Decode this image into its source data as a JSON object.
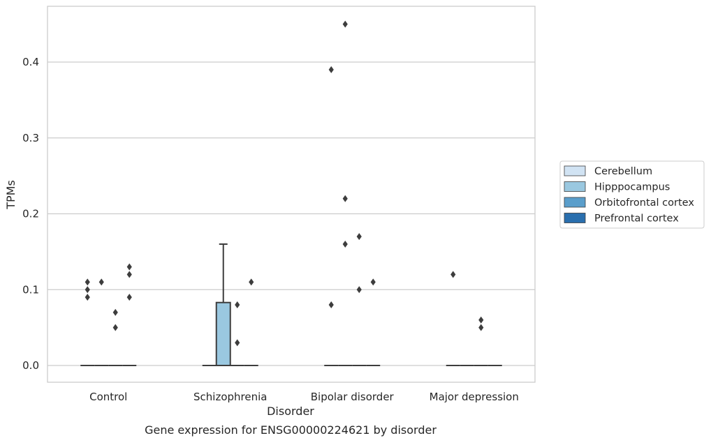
{
  "chart_data": {
    "type": "box",
    "xlabel": "Disorder",
    "ylabel": "TPMs",
    "caption": "Gene expression for ENSG00000224621 by disorder",
    "categories": [
      "Control",
      "Schizophrenia",
      "Bipolar disorder",
      "Major depression"
    ],
    "ylim": [
      -0.022,
      0.475
    ],
    "yticks": [
      "0.0",
      "0.1",
      "0.2",
      "0.3",
      "0.4"
    ],
    "yticks_values": [
      0.0,
      0.1,
      0.2,
      0.3,
      0.4
    ],
    "grid": "horizontal",
    "legend": {
      "placement": "right",
      "entries": [
        {
          "name": "Cerebellum",
          "color": "#d1e3f3"
        },
        {
          "name": "Hipppocampus",
          "color": "#9ac8e0"
        },
        {
          "name": "Orbitofrontal cortex",
          "color": "#5a9ecb"
        },
        {
          "name": "Prefrontal cortex",
          "color": "#2a6fae"
        }
      ]
    },
    "boxes": [
      {
        "category": "Control",
        "series": "Cerebellum",
        "q1": 0,
        "median": 0,
        "q3": 0,
        "whisker_low": 0,
        "whisker_high": 0,
        "outliers": [
          0.11,
          0.1,
          0.09
        ]
      },
      {
        "category": "Control",
        "series": "Hipppocampus",
        "q1": 0,
        "median": 0,
        "q3": 0,
        "whisker_low": 0,
        "whisker_high": 0,
        "outliers": [
          0.11
        ]
      },
      {
        "category": "Control",
        "series": "Orbitofrontal cortex",
        "q1": 0,
        "median": 0,
        "q3": 0,
        "whisker_low": 0,
        "whisker_high": 0,
        "outliers": [
          0.07,
          0.05
        ]
      },
      {
        "category": "Control",
        "series": "Prefrontal cortex",
        "q1": 0,
        "median": 0,
        "q3": 0,
        "whisker_low": 0,
        "whisker_high": 0,
        "outliers": [
          0.13,
          0.12,
          0.09
        ]
      },
      {
        "category": "Schizophrenia",
        "series": "Cerebellum",
        "q1": 0,
        "median": 0,
        "q3": 0,
        "whisker_low": 0,
        "whisker_high": 0,
        "outliers": []
      },
      {
        "category": "Schizophrenia",
        "series": "Hipppocampus",
        "q1": 0,
        "median": 0,
        "q3": 0.083,
        "whisker_low": 0,
        "whisker_high": 0.16,
        "outliers": []
      },
      {
        "category": "Schizophrenia",
        "series": "Orbitofrontal cortex",
        "q1": 0,
        "median": 0,
        "q3": 0,
        "whisker_low": 0,
        "whisker_high": 0,
        "outliers": [
          0.08,
          0.03
        ]
      },
      {
        "category": "Schizophrenia",
        "series": "Prefrontal cortex",
        "q1": 0,
        "median": 0,
        "q3": 0,
        "whisker_low": 0,
        "whisker_high": 0,
        "outliers": [
          0.11
        ]
      },
      {
        "category": "Bipolar disorder",
        "series": "Cerebellum",
        "q1": 0,
        "median": 0,
        "q3": 0,
        "whisker_low": 0,
        "whisker_high": 0,
        "outliers": [
          0.39,
          0.08
        ]
      },
      {
        "category": "Bipolar disorder",
        "series": "Hipppocampus",
        "q1": 0,
        "median": 0,
        "q3": 0,
        "whisker_low": 0,
        "whisker_high": 0,
        "outliers": [
          0.45,
          0.22,
          0.16
        ]
      },
      {
        "category": "Bipolar disorder",
        "series": "Orbitofrontal cortex",
        "q1": 0,
        "median": 0,
        "q3": 0,
        "whisker_low": 0,
        "whisker_high": 0,
        "outliers": [
          0.17,
          0.1
        ]
      },
      {
        "category": "Bipolar disorder",
        "series": "Prefrontal cortex",
        "q1": 0,
        "median": 0,
        "q3": 0,
        "whisker_low": 0,
        "whisker_high": 0,
        "outliers": [
          0.11
        ]
      },
      {
        "category": "Major depression",
        "series": "Cerebellum",
        "q1": 0,
        "median": 0,
        "q3": 0,
        "whisker_low": 0,
        "whisker_high": 0,
        "outliers": [
          0.12
        ]
      },
      {
        "category": "Major depression",
        "series": "Hipppocampus",
        "q1": 0,
        "median": 0,
        "q3": 0,
        "whisker_low": 0,
        "whisker_high": 0,
        "outliers": []
      },
      {
        "category": "Major depression",
        "series": "Orbitofrontal cortex",
        "q1": 0,
        "median": 0,
        "q3": 0,
        "whisker_low": 0,
        "whisker_high": 0,
        "outliers": [
          0.06,
          0.05
        ]
      },
      {
        "category": "Major depression",
        "series": "Prefrontal cortex",
        "q1": 0,
        "median": 0,
        "q3": 0,
        "whisker_low": 0,
        "whisker_high": 0,
        "outliers": []
      }
    ]
  },
  "colors": {
    "grid": "#cccccc",
    "frame": "#cccccc",
    "line": "#3d3d3d",
    "outlier": "#3d3d3d"
  }
}
